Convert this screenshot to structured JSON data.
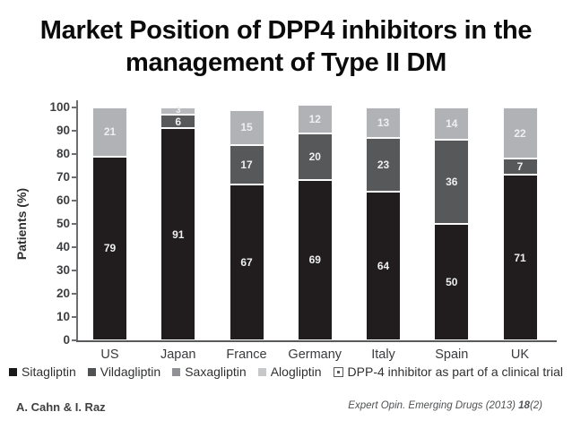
{
  "slide": {
    "title": {
      "line1": "Market Position of DPP4 inhibitors in the",
      "line2": "management of Type II DM"
    },
    "footer": {
      "authors": "A. Cahn & I. Raz",
      "citation_journal": "Expert Opin. Emerging Drugs",
      "citation_year": " (2013) ",
      "citation_volume": "18",
      "citation_issue": "(2)"
    }
  },
  "chart_data": {
    "type": "bar",
    "stacked": true,
    "title": "",
    "xlabel": "",
    "ylabel": "Patients (%)",
    "ylim": [
      0,
      100
    ],
    "ytick_step": 10,
    "yticks": [
      0,
      10,
      20,
      30,
      40,
      50,
      60,
      70,
      80,
      90,
      100
    ],
    "grid": false,
    "legend_position": "bottom",
    "categories": [
      "US",
      "Japan",
      "France",
      "Germany",
      "Italy",
      "Spain",
      "UK"
    ],
    "series": [
      {
        "name": "Sitagliptin",
        "bar_color": "#211d1e",
        "legend_color": "#1a1718",
        "values": [
          79,
          91,
          67,
          69,
          64,
          50,
          71
        ]
      },
      {
        "name": "Vildagliptin",
        "bar_color": "#57585a",
        "legend_color": "#505153",
        "values": [
          0,
          6,
          17,
          20,
          23,
          36,
          7
        ]
      },
      {
        "name": "Saxagliptin",
        "bar_color": "#b0b2b5",
        "legend_color": "#8f9194",
        "values": [
          21,
          0,
          15,
          12,
          13,
          14,
          22
        ]
      },
      {
        "name": "Alogliptin",
        "bar_color": "#b7b9bc",
        "legend_color": "#c6c8ca",
        "values": [
          0,
          3,
          0,
          0,
          0,
          0,
          0
        ]
      },
      {
        "name": "DPP-4 inhibitor as part of a clinical trial",
        "bar_color": "#ffffff",
        "legend_color": "#ffffff",
        "legend_style": "outlined-dot",
        "values": [
          0,
          0,
          0,
          0,
          0,
          0,
          0
        ]
      }
    ]
  }
}
